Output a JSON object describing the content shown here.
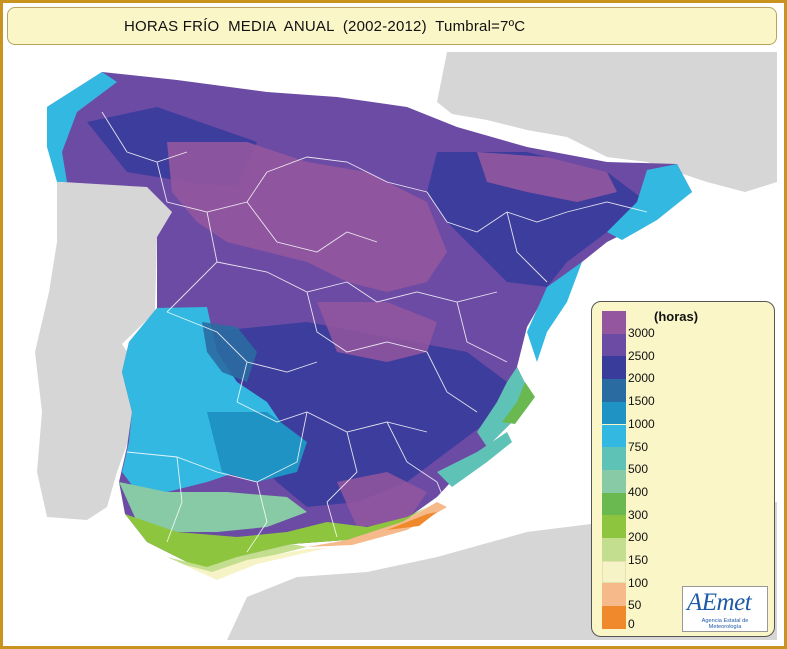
{
  "title": "HORAS FRÍO  MEDIA  ANUAL  (2002-2012)  Tumbral=7ºC",
  "legend": {
    "unit": "(horas)",
    "classes": [
      {
        "label": "3000",
        "color": "#93569f"
      },
      {
        "label": "2500",
        "color": "#6c4ba4"
      },
      {
        "label": "2000",
        "color": "#3a3c9c"
      },
      {
        "label": "1500",
        "color": "#2a6ca2"
      },
      {
        "label": "1000",
        "color": "#1f93c4"
      },
      {
        "label": "750",
        "color": "#33b8e2"
      },
      {
        "label": "500",
        "color": "#5fc2b6"
      },
      {
        "label": "400",
        "color": "#88c9a6"
      },
      {
        "label": "300",
        "color": "#6ab850"
      },
      {
        "label": "200",
        "color": "#8dc63e"
      },
      {
        "label": "150",
        "color": "#c4de90"
      },
      {
        "label": "100",
        "color": "#f6f3c6"
      },
      {
        "label": "50",
        "color": "#f5b98a"
      },
      {
        "label": "0",
        "color": "#f0892c"
      }
    ]
  },
  "logo": {
    "word": "AEmet",
    "subtitle": "Agencia Estatal de Meteorología"
  },
  "colors": {
    "frame": "#c8941f",
    "panel": "#fbf6c8",
    "land_gray": "#d6d6d6",
    "borders": "#ffffff"
  }
}
